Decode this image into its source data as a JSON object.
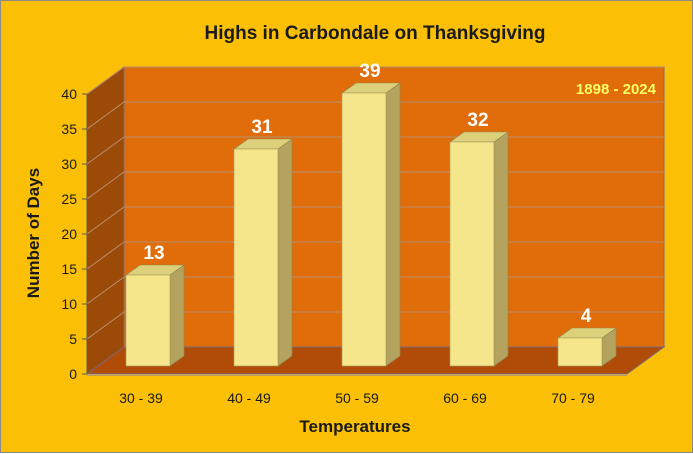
{
  "chart_data": {
    "type": "bar",
    "title": "Highs in Carbondale on Thanksgiving",
    "annotation": "1898 - 2024",
    "xlabel": "Temperatures",
    "ylabel": "Number of Days",
    "categories": [
      "30 - 39",
      "40 - 49",
      "50 - 59",
      "60 - 69",
      "70 - 79"
    ],
    "values": [
      13,
      31,
      39,
      32,
      4
    ],
    "ylim": [
      0,
      40
    ],
    "yticks": [
      0,
      5,
      10,
      15,
      20,
      25,
      30,
      35,
      40
    ],
    "grid": true,
    "legend": "none",
    "colors": {
      "background": "#fbc005",
      "back_wall": "#e06d0a",
      "side_wall": "#9c4a08",
      "floor": "#b04c08",
      "bar_front": "#f5e68c",
      "bar_side": "#b3a35e",
      "bar_top": "#ddd07a",
      "gridline": "#b99070",
      "data_label": "#ffffff",
      "annotation": "#ffff66"
    }
  }
}
